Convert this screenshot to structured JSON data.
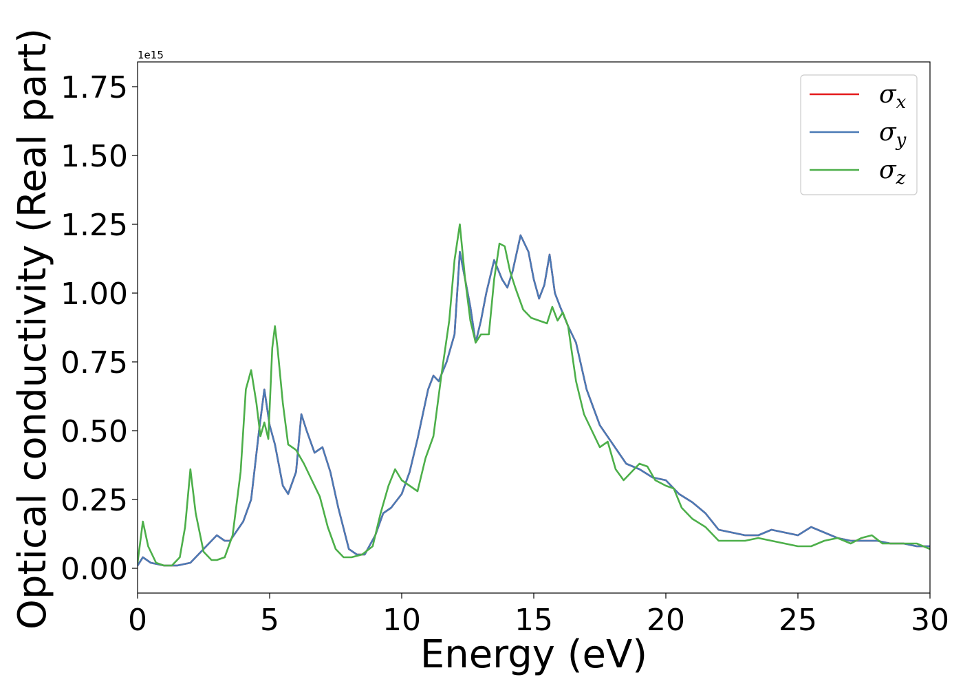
{
  "chart_data": {
    "type": "line",
    "xlabel": "Energy (eV)",
    "ylabel": "Optical conductivity (Real part)",
    "y_offset_text": "1e15",
    "xlim": [
      0,
      30
    ],
    "ylim": [
      -0.09,
      1.84
    ],
    "x_ticks": [
      0,
      5,
      10,
      15,
      20,
      25,
      30
    ],
    "x_tick_labels": [
      "0",
      "5",
      "10",
      "15",
      "20",
      "25",
      "30"
    ],
    "y_ticks": [
      0.0,
      0.25,
      0.5,
      0.75,
      1.0,
      1.25,
      1.5,
      1.75
    ],
    "y_tick_labels": [
      "0.00",
      "0.25",
      "0.50",
      "0.75",
      "1.00",
      "1.25",
      "1.50",
      "1.75"
    ],
    "grid": false,
    "legend_position": "top-right",
    "series": [
      {
        "name": "σx",
        "label_base": "σ",
        "label_sub": "x",
        "color": "#e41a1c",
        "x": [
          0,
          0.2,
          0.5,
          1,
          1.5,
          2,
          2.5,
          2.8,
          3,
          3.3,
          3.5,
          4,
          4.3,
          4.6,
          4.8,
          5,
          5.2,
          5.5,
          5.7,
          6,
          6.2,
          6.4,
          6.7,
          7,
          7.3,
          7.6,
          8,
          8.3,
          8.6,
          9,
          9.3,
          9.6,
          10,
          10.3,
          10.6,
          11,
          11.2,
          11.4,
          11.7,
          12,
          12.2,
          12.4,
          12.6,
          12.8,
          13,
          13.2,
          13.5,
          13.8,
          14,
          14.2,
          14.5,
          14.8,
          15,
          15.2,
          15.4,
          15.6,
          15.8,
          16,
          16.3,
          16.6,
          17,
          17.5,
          18,
          18.5,
          19,
          19.5,
          20,
          20.5,
          21,
          21.5,
          22,
          22.5,
          23,
          23.5,
          24,
          24.5,
          25,
          25.5,
          26,
          26.5,
          27,
          27.5,
          28,
          28.5,
          29,
          29.5,
          30
        ],
        "y": [
          0.01,
          0.04,
          0.02,
          0.01,
          0.01,
          0.02,
          0.07,
          0.1,
          0.12,
          0.1,
          0.1,
          0.17,
          0.25,
          0.5,
          0.65,
          0.52,
          0.45,
          0.3,
          0.27,
          0.35,
          0.56,
          0.5,
          0.42,
          0.44,
          0.35,
          0.22,
          0.07,
          0.05,
          0.05,
          0.12,
          0.2,
          0.22,
          0.27,
          0.35,
          0.47,
          0.65,
          0.7,
          0.68,
          0.75,
          0.85,
          1.15,
          1.05,
          0.95,
          0.82,
          0.9,
          1.0,
          1.12,
          1.05,
          1.02,
          1.08,
          1.21,
          1.15,
          1.05,
          0.98,
          1.03,
          1.14,
          1.0,
          0.95,
          0.88,
          0.82,
          0.65,
          0.52,
          0.45,
          0.38,
          0.36,
          0.33,
          0.32,
          0.27,
          0.24,
          0.2,
          0.14,
          0.13,
          0.12,
          0.12,
          0.14,
          0.13,
          0.12,
          0.15,
          0.13,
          0.11,
          0.1,
          0.1,
          0.1,
          0.09,
          0.09,
          0.08,
          0.08
        ]
      },
      {
        "name": "σy",
        "label_base": "σ",
        "label_sub": "y",
        "color": "#4a7ab5",
        "x": [
          0,
          0.2,
          0.5,
          1,
          1.5,
          2,
          2.5,
          2.8,
          3,
          3.3,
          3.5,
          4,
          4.3,
          4.6,
          4.8,
          5,
          5.2,
          5.5,
          5.7,
          6,
          6.2,
          6.4,
          6.7,
          7,
          7.3,
          7.6,
          8,
          8.3,
          8.6,
          9,
          9.3,
          9.6,
          10,
          10.3,
          10.6,
          11,
          11.2,
          11.4,
          11.7,
          12,
          12.2,
          12.4,
          12.6,
          12.8,
          13,
          13.2,
          13.5,
          13.8,
          14,
          14.2,
          14.5,
          14.8,
          15,
          15.2,
          15.4,
          15.6,
          15.8,
          16,
          16.3,
          16.6,
          17,
          17.5,
          18,
          18.5,
          19,
          19.5,
          20,
          20.5,
          21,
          21.5,
          22,
          22.5,
          23,
          23.5,
          24,
          24.5,
          25,
          25.5,
          26,
          26.5,
          27,
          27.5,
          28,
          28.5,
          29,
          29.5,
          30
        ],
        "y": [
          0.01,
          0.04,
          0.02,
          0.01,
          0.01,
          0.02,
          0.07,
          0.1,
          0.12,
          0.1,
          0.1,
          0.17,
          0.25,
          0.5,
          0.65,
          0.52,
          0.45,
          0.3,
          0.27,
          0.35,
          0.56,
          0.5,
          0.42,
          0.44,
          0.35,
          0.22,
          0.07,
          0.05,
          0.05,
          0.12,
          0.2,
          0.22,
          0.27,
          0.35,
          0.47,
          0.65,
          0.7,
          0.68,
          0.75,
          0.85,
          1.15,
          1.05,
          0.95,
          0.82,
          0.9,
          1.0,
          1.12,
          1.05,
          1.02,
          1.08,
          1.21,
          1.15,
          1.05,
          0.98,
          1.03,
          1.14,
          1.0,
          0.95,
          0.88,
          0.82,
          0.65,
          0.52,
          0.45,
          0.38,
          0.36,
          0.33,
          0.32,
          0.27,
          0.24,
          0.2,
          0.14,
          0.13,
          0.12,
          0.12,
          0.14,
          0.13,
          0.12,
          0.15,
          0.13,
          0.11,
          0.1,
          0.1,
          0.1,
          0.09,
          0.09,
          0.08,
          0.08
        ]
      },
      {
        "name": "σz",
        "label_base": "σ",
        "label_sub": "z",
        "color": "#4daf4a",
        "x": [
          0,
          0.2,
          0.4,
          0.7,
          1,
          1.3,
          1.6,
          1.8,
          2,
          2.2,
          2.5,
          2.8,
          3,
          3.3,
          3.6,
          3.9,
          4.1,
          4.3,
          4.5,
          4.65,
          4.8,
          4.95,
          5.1,
          5.2,
          5.3,
          5.5,
          5.7,
          6,
          6.3,
          6.6,
          6.9,
          7.2,
          7.5,
          7.8,
          8.1,
          8.5,
          8.9,
          9.2,
          9.5,
          9.75,
          10,
          10.3,
          10.6,
          10.9,
          11.2,
          11.5,
          11.8,
          12,
          12.2,
          12.4,
          12.6,
          12.8,
          13,
          13.3,
          13.5,
          13.7,
          13.9,
          14.1,
          14.3,
          14.6,
          14.9,
          15.2,
          15.5,
          15.7,
          15.9,
          16.1,
          16.3,
          16.6,
          16.9,
          17.2,
          17.5,
          17.8,
          18.1,
          18.4,
          18.7,
          19,
          19.3,
          19.6,
          20,
          20.3,
          20.6,
          21,
          21.5,
          22,
          22.5,
          23,
          23.5,
          24,
          24.5,
          25,
          25.5,
          26,
          26.5,
          27,
          27.4,
          27.8,
          28.2,
          28.6,
          29,
          29.5,
          30
        ],
        "y": [
          0.02,
          0.17,
          0.08,
          0.02,
          0.01,
          0.01,
          0.04,
          0.15,
          0.36,
          0.2,
          0.06,
          0.03,
          0.03,
          0.04,
          0.12,
          0.35,
          0.65,
          0.72,
          0.6,
          0.48,
          0.53,
          0.47,
          0.8,
          0.88,
          0.8,
          0.6,
          0.45,
          0.43,
          0.38,
          0.32,
          0.26,
          0.15,
          0.07,
          0.04,
          0.04,
          0.05,
          0.08,
          0.2,
          0.3,
          0.36,
          0.32,
          0.3,
          0.28,
          0.4,
          0.48,
          0.7,
          0.9,
          1.12,
          1.25,
          1.05,
          0.9,
          0.82,
          0.85,
          0.85,
          1.05,
          1.18,
          1.17,
          1.08,
          1.02,
          0.94,
          0.91,
          0.9,
          0.89,
          0.95,
          0.9,
          0.93,
          0.88,
          0.68,
          0.56,
          0.5,
          0.44,
          0.46,
          0.36,
          0.32,
          0.35,
          0.38,
          0.37,
          0.32,
          0.3,
          0.29,
          0.22,
          0.18,
          0.15,
          0.1,
          0.1,
          0.1,
          0.11,
          0.1,
          0.09,
          0.08,
          0.08,
          0.1,
          0.11,
          0.09,
          0.11,
          0.12,
          0.09,
          0.09,
          0.09,
          0.09,
          0.07
        ]
      }
    ]
  }
}
